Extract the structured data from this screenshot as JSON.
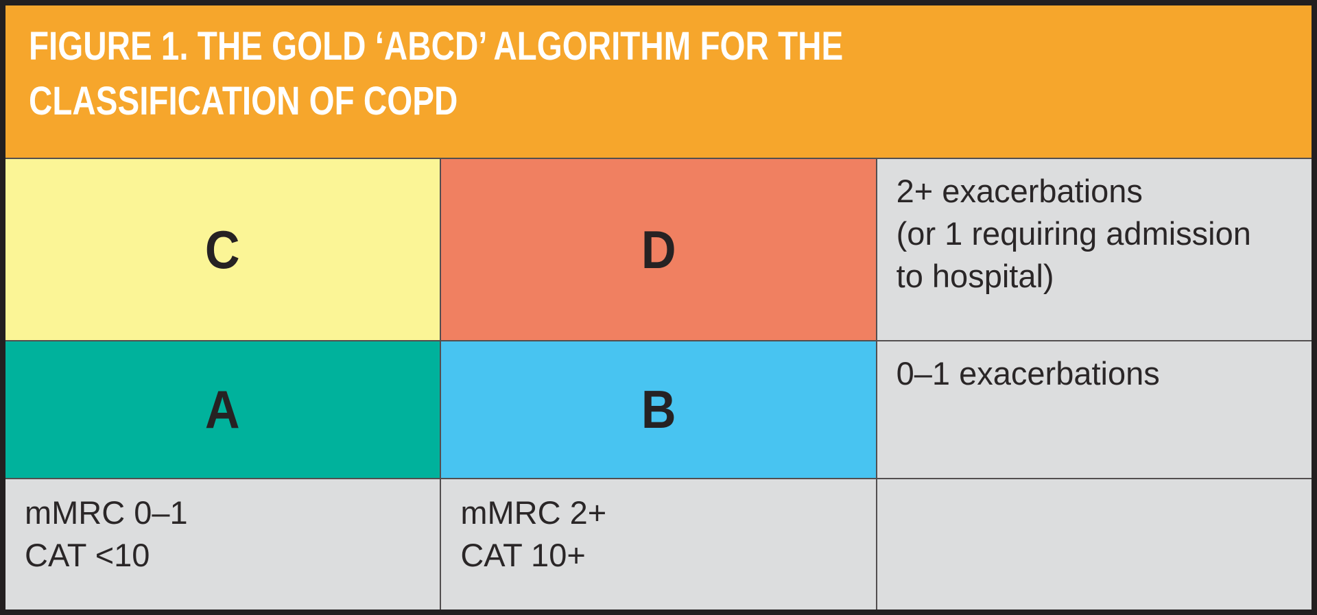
{
  "title": {
    "lines": [
      "FIGURE 1. THE GOLD ‘ABCD’ ALGORITHM FOR THE",
      "CLASSIFICATION OF COPD"
    ]
  },
  "grid": {
    "groups": [
      {
        "label": "C"
      },
      {
        "label": "D"
      },
      {
        "label": "A"
      },
      {
        "label": "B"
      }
    ],
    "exacerbation_notes": {
      "high_risk_lines": [
        "2+ exacerbations",
        "(or 1 requiring admission",
        "to hospital)"
      ],
      "low_risk": "0–1 exacerbations"
    },
    "symptom_criteria": {
      "low_symptoms_lines": [
        "mMRC 0–1",
        "CAT <10"
      ],
      "high_symptoms_lines": [
        "mMRC 2+",
        "CAT 10+"
      ]
    }
  },
  "colors": {
    "header_bg": "#f6a62c",
    "cell_c_bg": "#fbf596",
    "cell_d_bg": "#f08061",
    "cell_a_bg": "#00b29c",
    "cell_b_bg": "#48c4f1",
    "note_bg": "#dcddde",
    "grid_line": "#524e4f",
    "outer_border": "#231f20",
    "title_text": "#ffffff",
    "body_text": "#2a2627"
  }
}
